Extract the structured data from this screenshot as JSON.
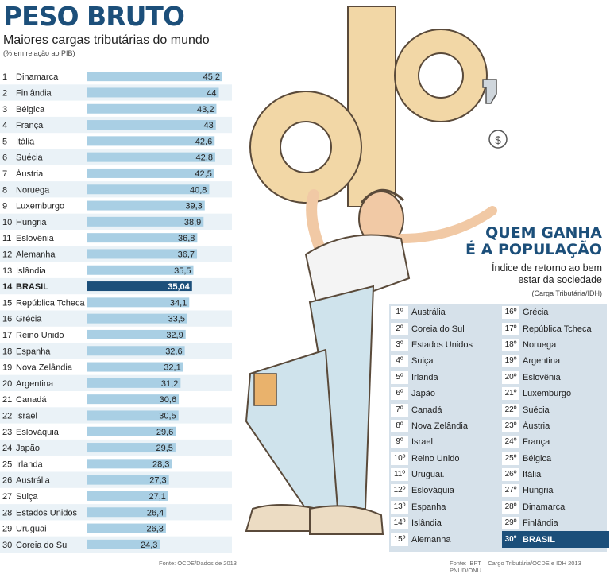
{
  "header": {
    "title": "PESO BRUTO",
    "subtitle": "Maiores cargas tributárias do mundo",
    "note": "(% em relação ao PIB)"
  },
  "chart_data": {
    "type": "bar",
    "orientation": "horizontal",
    "title": "PESO BRUTO",
    "subtitle": "Maiores cargas tributárias do mundo",
    "unit_note": "(% em relação ao PIB)",
    "ranks": [
      "1",
      "2",
      "3",
      "4",
      "5",
      "6",
      "7",
      "8",
      "9",
      "10",
      "11",
      "12",
      "13",
      "14",
      "15",
      "16",
      "17",
      "18",
      "19",
      "20",
      "21",
      "22",
      "23",
      "24",
      "25",
      "26",
      "27",
      "28",
      "29",
      "30"
    ],
    "categories": [
      "Dinamarca",
      "Finlândia",
      "Bélgica",
      "França",
      "Itália",
      "Suécia",
      "Áustria",
      "Noruega",
      "Luxemburgo",
      "Hungria",
      "Eslovênia",
      "Alemanha",
      "Islândia",
      "BRASIL",
      "República Tcheca",
      "Grécia",
      "Reino Unido",
      "Espanha",
      "Nova Zelândia",
      "Argentina",
      "Canadá",
      "Israel",
      "Eslováquia",
      "Japão",
      "Irlanda",
      "Austrália",
      "Suiça",
      "Estados Unidos",
      "Uruguai",
      "Coreia do Sul"
    ],
    "values": [
      45.2,
      44,
      43.2,
      43,
      42.6,
      42.8,
      42.5,
      40.8,
      39.3,
      38.9,
      36.8,
      36.7,
      35.5,
      35.04,
      34.1,
      33.5,
      32.9,
      32.6,
      32.1,
      31.2,
      30.6,
      30.5,
      29.6,
      29.5,
      28.3,
      27.3,
      27.1,
      26.4,
      26.3,
      24.3
    ],
    "value_labels": [
      "45,2",
      "44",
      "43,2",
      "43",
      "42,6",
      "42,8",
      "42,5",
      "40,8",
      "39,3",
      "38,9",
      "36,8",
      "36,7",
      "35,5",
      "35,04",
      "34,1",
      "33,5",
      "32,9",
      "32,6",
      "32,1",
      "31,2",
      "30,6",
      "30,5",
      "29,6",
      "29,5",
      "28,3",
      "27,3",
      "27,1",
      "26,4",
      "26,3",
      "24,3"
    ],
    "highlight": "BRASIL",
    "xlim": [
      0,
      45.2
    ],
    "grid": false,
    "legend": "none",
    "colors": {
      "bar": "#a9cfe4",
      "highlight": "#1c4f7a",
      "row_light": "#eaf2f7"
    },
    "source": "Fonte: OCDE/Dados de 2013"
  },
  "panel": {
    "title_line1": "QUEM GANHA",
    "title_line2": "É A POPULAÇÃO",
    "subtitle_line1": "Índice de retorno ao bem",
    "subtitle_line2": "estar da sociedade",
    "note": "(Carga Tributária/IDH)",
    "ranking": [
      {
        "rank": "1º",
        "country": "Austrália"
      },
      {
        "rank": "2º",
        "country": "Coreia do Sul"
      },
      {
        "rank": "3º",
        "country": "Estados Unidos"
      },
      {
        "rank": "4º",
        "country": "Suiça"
      },
      {
        "rank": "5º",
        "country": "Irlanda"
      },
      {
        "rank": "6º",
        "country": "Japão"
      },
      {
        "rank": "7º",
        "country": "Canadá"
      },
      {
        "rank": "8º",
        "country": "Nova Zelândia"
      },
      {
        "rank": "9º",
        "country": "Israel"
      },
      {
        "rank": "10º",
        "country": "Reino Unido"
      },
      {
        "rank": "11º",
        "country": "Uruguai."
      },
      {
        "rank": "12º",
        "country": "Eslováquia"
      },
      {
        "rank": "13º",
        "country": "Espanha"
      },
      {
        "rank": "14º",
        "country": "Islândia"
      },
      {
        "rank": "15º",
        "country": "Alemanha"
      },
      {
        "rank": "16º",
        "country": "Grécia"
      },
      {
        "rank": "17º",
        "country": "República Tcheca"
      },
      {
        "rank": "18º",
        "country": "Noruega"
      },
      {
        "rank": "19º",
        "country": "Argentina"
      },
      {
        "rank": "20º",
        "country": "Eslovênia"
      },
      {
        "rank": "21º",
        "country": "Luxemburgo"
      },
      {
        "rank": "22º",
        "country": "Suécia"
      },
      {
        "rank": "23º",
        "country": "Áustria"
      },
      {
        "rank": "24º",
        "country": "França"
      },
      {
        "rank": "25º",
        "country": "Bélgica"
      },
      {
        "rank": "26º",
        "country": "Itália"
      },
      {
        "rank": "27º",
        "country": "Hungria"
      },
      {
        "rank": "28º",
        "country": "Dinamarca"
      },
      {
        "rank": "29º",
        "country": "Finlândia"
      },
      {
        "rank": "30º",
        "country": "BRASIL",
        "highlight": true
      }
    ],
    "source": "Fonte: IBPT – Cargo Tributária/OCDE e IDH 2013 PNUD/ONU"
  },
  "illustration": {
    "icon": "man-carrying-percent-sign-illustration",
    "coin_symbol": "$"
  }
}
